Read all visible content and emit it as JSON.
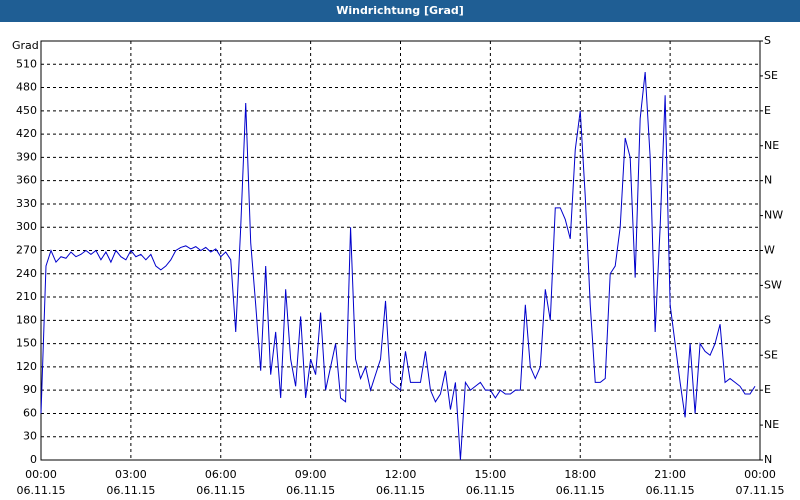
{
  "chart_data": {
    "type": "line",
    "title": "Windrichtung [Grad]",
    "y_label": "Grad",
    "x": [
      0,
      10,
      20,
      30,
      40,
      50,
      60,
      70,
      80,
      90,
      100,
      110,
      120,
      130,
      140,
      150,
      160,
      170,
      180,
      190,
      200,
      210,
      220,
      230,
      240,
      250,
      260,
      270,
      280,
      290,
      300,
      310,
      320,
      330,
      340,
      350,
      360,
      370,
      380,
      390,
      400,
      410,
      420,
      430,
      440,
      450,
      460,
      470,
      480,
      490,
      500,
      510,
      520,
      530,
      540,
      550,
      560,
      570,
      580,
      590,
      600,
      610,
      620,
      630,
      640,
      650,
      660,
      670,
      680,
      690,
      700,
      710,
      720,
      730,
      740,
      750,
      760,
      770,
      780,
      790,
      800,
      810,
      820,
      830,
      840,
      850,
      860,
      870,
      880,
      890,
      900,
      910,
      920,
      930,
      940,
      950,
      960,
      970,
      980,
      990,
      1000,
      1010,
      1020,
      1030,
      1040,
      1050,
      1060,
      1070,
      1080,
      1090,
      1100,
      1110,
      1120,
      1130,
      1140,
      1150,
      1160,
      1170,
      1180,
      1190,
      1200,
      1210,
      1220,
      1230,
      1240,
      1250,
      1260,
      1270,
      1280,
      1290,
      1300,
      1310,
      1320,
      1330,
      1340,
      1350,
      1360,
      1370,
      1380,
      1390,
      1400,
      1410,
      1420,
      1430
    ],
    "values": [
      60,
      250,
      270,
      255,
      262,
      260,
      268,
      262,
      265,
      270,
      265,
      270,
      258,
      268,
      255,
      270,
      262,
      258,
      270,
      262,
      265,
      258,
      265,
      250,
      245,
      250,
      258,
      270,
      274,
      276,
      272,
      275,
      270,
      274,
      268,
      272,
      262,
      268,
      258,
      165,
      300,
      460,
      280,
      200,
      115,
      250,
      110,
      165,
      80,
      220,
      130,
      95,
      185,
      80,
      130,
      110,
      190,
      90,
      120,
      150,
      80,
      75,
      300,
      130,
      105,
      120,
      90,
      110,
      130,
      205,
      100,
      95,
      90,
      140,
      100,
      100,
      100,
      140,
      90,
      75,
      85,
      115,
      65,
      100,
      0,
      100,
      90,
      95,
      100,
      90,
      90,
      80,
      90,
      85,
      85,
      90,
      90,
      200,
      120,
      105,
      120,
      220,
      180,
      325,
      325,
      310,
      285,
      400,
      450,
      340,
      200,
      100,
      100,
      105,
      240,
      250,
      300,
      415,
      390,
      235,
      440,
      500,
      390,
      165,
      300,
      470,
      200,
      150,
      100,
      55,
      150,
      60,
      150,
      140,
      135,
      150,
      175,
      100,
      105,
      100,
      95,
      85,
      85,
      95
    ],
    "color": "#0000cc",
    "xlim": [
      0,
      1440
    ],
    "xticks": [
      {
        "value": 0,
        "label": "00:00"
      },
      {
        "value": 180,
        "label": "03:00"
      },
      {
        "value": 360,
        "label": "06:00"
      },
      {
        "value": 540,
        "label": "09:00"
      },
      {
        "value": 720,
        "label": "12:00"
      },
      {
        "value": 900,
        "label": "15:00"
      },
      {
        "value": 1080,
        "label": "18:00"
      },
      {
        "value": 1260,
        "label": "21:00"
      },
      {
        "value": 1440,
        "label": "00:00"
      }
    ],
    "xtick_dates": [
      "06.11.15",
      "06.11.15",
      "06.11.15",
      "06.11.15",
      "06.11.15",
      "06.11.15",
      "06.11.15",
      "06.11.15",
      "07.11.15"
    ],
    "ylim": [
      0,
      540
    ],
    "yticks": [
      0,
      30,
      60,
      90,
      120,
      150,
      180,
      210,
      240,
      270,
      300,
      330,
      360,
      390,
      420,
      450,
      480,
      510
    ],
    "y2lim": [
      0,
      540
    ],
    "y2ticks": [
      {
        "value": 0,
        "label": "N"
      },
      {
        "value": 45,
        "label": "NE"
      },
      {
        "value": 90,
        "label": "E"
      },
      {
        "value": 135,
        "label": "SE"
      },
      {
        "value": 180,
        "label": "S"
      },
      {
        "value": 225,
        "label": "SW"
      },
      {
        "value": 270,
        "label": "W"
      },
      {
        "value": 315,
        "label": "NW"
      },
      {
        "value": 360,
        "label": "N"
      },
      {
        "value": 405,
        "label": "NE"
      },
      {
        "value": 450,
        "label": "E"
      },
      {
        "value": 495,
        "label": "SE"
      },
      {
        "value": 540,
        "label": "S"
      }
    ],
    "grid": true
  }
}
